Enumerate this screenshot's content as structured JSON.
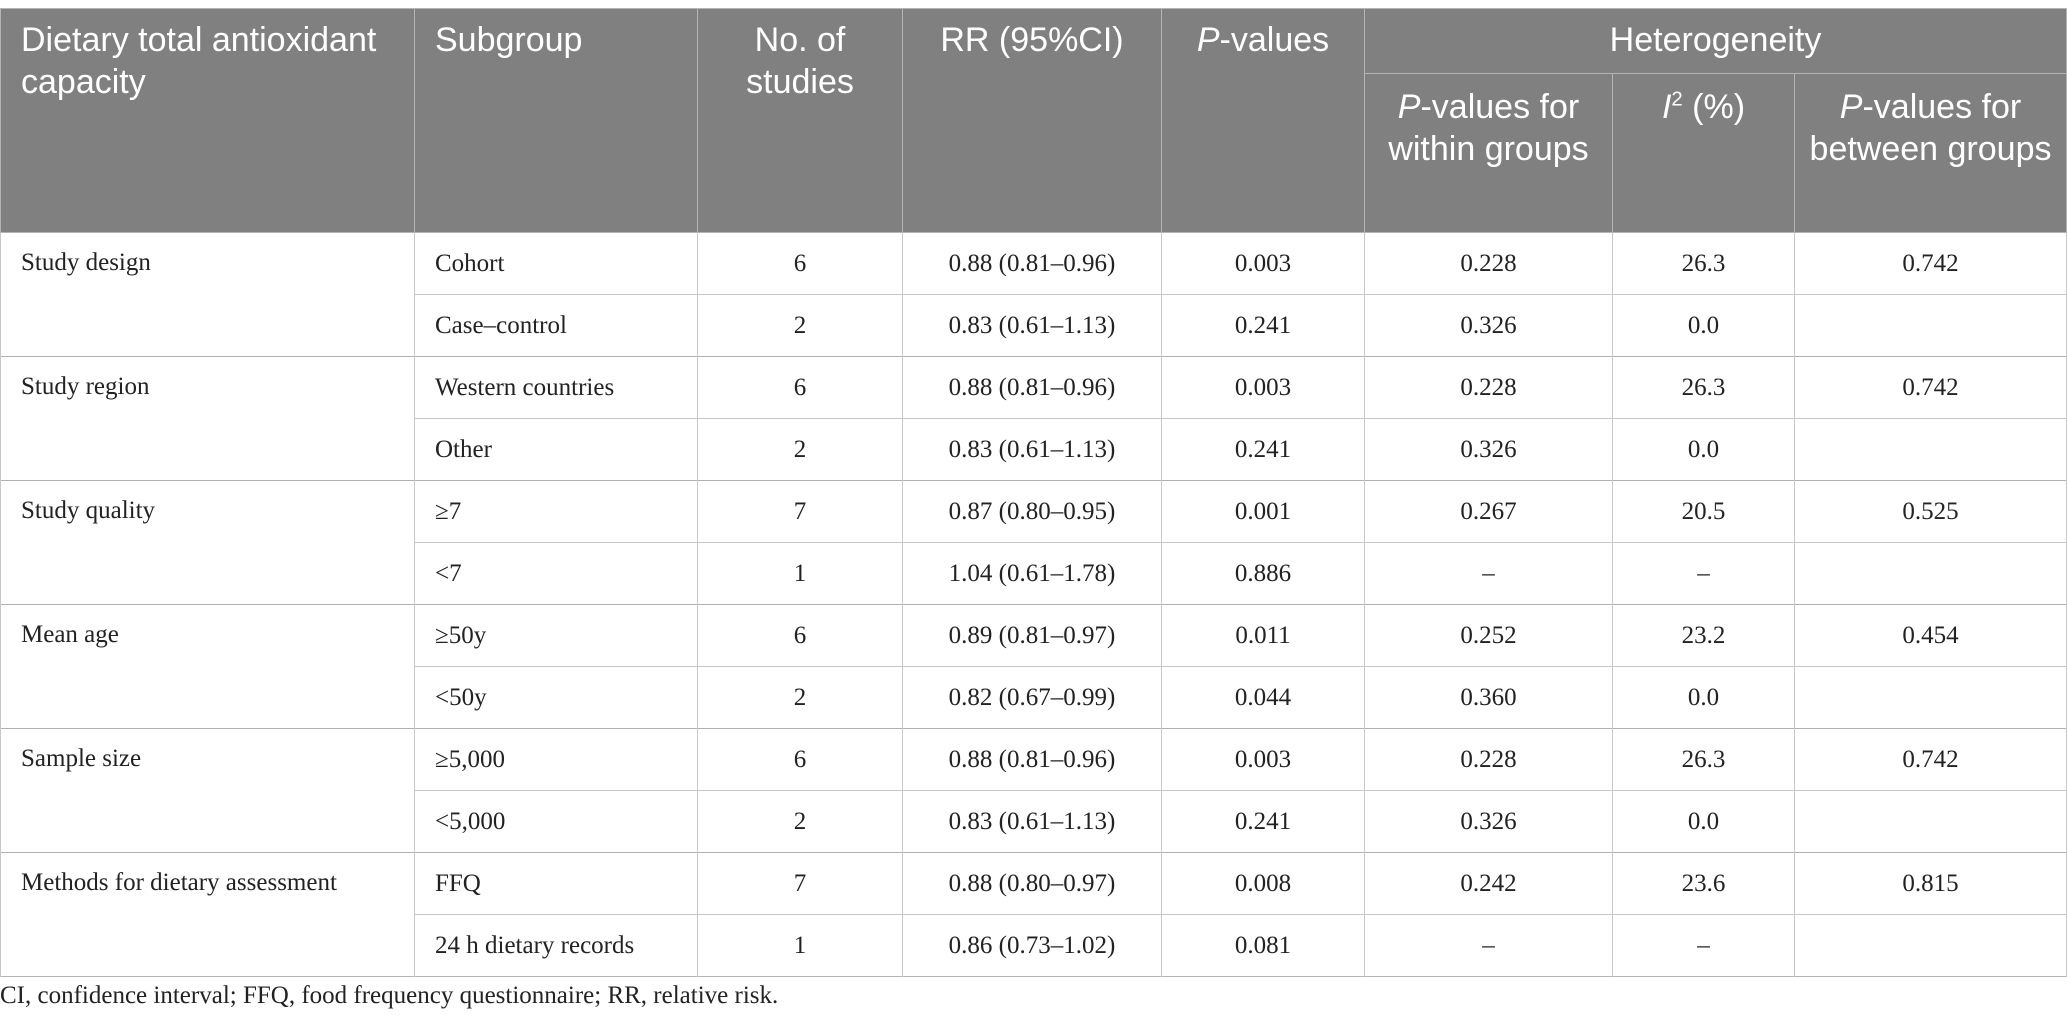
{
  "header": {
    "col1": "Dietary total antioxidant capacity",
    "col2": "Subgroup",
    "col3": "No. of studies",
    "col4": "RR (95%CI)",
    "col5_italic": "P",
    "col5_rest": "-values",
    "heterogeneity": "Heterogeneity",
    "h_within_italic": "P",
    "h_within_rest": "-values for within groups",
    "h_i2_italic": "I",
    "h_i2_sup": "2",
    "h_i2_rest": " (%)",
    "h_between_italic": "P",
    "h_between_rest": "-values for between groups"
  },
  "groups": [
    {
      "name": "Study design",
      "between": "0.742",
      "rows": [
        {
          "subgroup": "Cohort",
          "n": "6",
          "rr": "0.88 (0.81–0.96)",
          "p": "0.003",
          "within": "0.228",
          "i2": "26.3"
        },
        {
          "subgroup": "Case–control",
          "n": "2",
          "rr": "0.83 (0.61–1.13)",
          "p": "0.241",
          "within": "0.326",
          "i2": "0.0"
        }
      ]
    },
    {
      "name": "Study region",
      "between": "0.742",
      "rows": [
        {
          "subgroup": "Western countries",
          "n": "6",
          "rr": "0.88 (0.81–0.96)",
          "p": "0.003",
          "within": "0.228",
          "i2": "26.3"
        },
        {
          "subgroup": "Other",
          "n": "2",
          "rr": "0.83 (0.61–1.13)",
          "p": "0.241",
          "within": "0.326",
          "i2": "0.0"
        }
      ]
    },
    {
      "name": "Study quality",
      "between": "0.525",
      "rows": [
        {
          "subgroup": "≥7",
          "n": "7",
          "rr": "0.87 (0.80–0.95)",
          "p": "0.001",
          "within": "0.267",
          "i2": "20.5"
        },
        {
          "subgroup": "<7",
          "n": "1",
          "rr": "1.04 (0.61–1.78)",
          "p": "0.886",
          "within": "–",
          "i2": "–"
        }
      ]
    },
    {
      "name": "Mean age",
      "between": "0.454",
      "rows": [
        {
          "subgroup": "≥50y",
          "n": "6",
          "rr": "0.89 (0.81–0.97)",
          "p": "0.011",
          "within": "0.252",
          "i2": "23.2"
        },
        {
          "subgroup": "<50y",
          "n": "2",
          "rr": "0.82 (0.67–0.99)",
          "p": "0.044",
          "within": "0.360",
          "i2": "0.0"
        }
      ]
    },
    {
      "name": "Sample size",
      "between": "0.742",
      "rows": [
        {
          "subgroup": "≥5,000",
          "n": "6",
          "rr": "0.88 (0.81–0.96)",
          "p": "0.003",
          "within": "0.228",
          "i2": "26.3"
        },
        {
          "subgroup": "<5,000",
          "n": "2",
          "rr": "0.83 (0.61–1.13)",
          "p": "0.241",
          "within": "0.326",
          "i2": "0.0"
        }
      ]
    },
    {
      "name": "Methods for dietary assessment",
      "between": "0.815",
      "rows": [
        {
          "subgroup": "FFQ",
          "n": "7",
          "rr": "0.88 (0.80–0.97)",
          "p": "0.008",
          "within": "0.242",
          "i2": "23.6"
        },
        {
          "subgroup": "24 h dietary records",
          "n": "1",
          "rr": "0.86 (0.73–1.02)",
          "p": "0.081",
          "within": "–",
          "i2": "–"
        }
      ]
    }
  ],
  "footnote": "CI, confidence interval; FFQ, food frequency questionnaire; RR, relative risk.",
  "colors": {
    "header_bg": "#7f807f",
    "header_text": "#ffffff",
    "grid": "#c8c8c8"
  }
}
